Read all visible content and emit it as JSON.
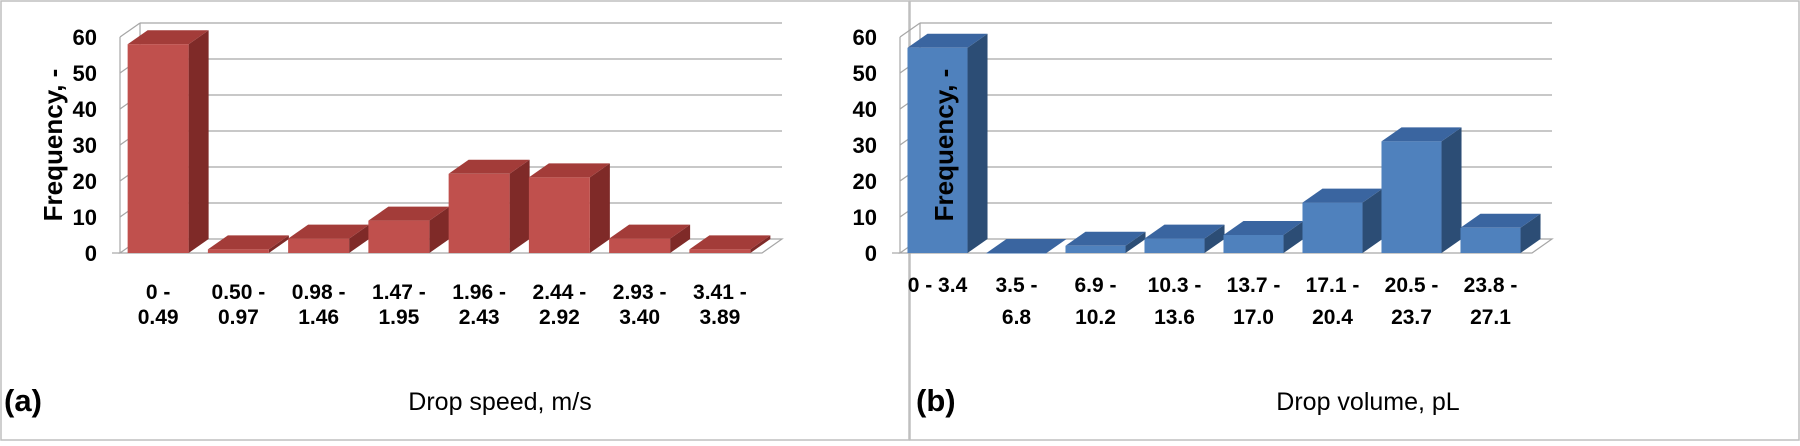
{
  "chart_data": [
    {
      "type": "bar",
      "panel_label": "(a)",
      "categories": [
        [
          "0 -",
          "0.49"
        ],
        [
          "0.50 -",
          "0.97"
        ],
        [
          "0.98 -",
          "1.46"
        ],
        [
          "1.47 -",
          "1.95"
        ],
        [
          "1.96 -",
          "2.43"
        ],
        [
          "2.44 -",
          "2.92"
        ],
        [
          "2.93 -",
          "3.40"
        ],
        [
          "3.41 -",
          "3.89"
        ]
      ],
      "values": [
        58,
        1,
        4,
        9,
        22,
        21,
        4,
        1
      ],
      "xlabel": "Drop speed, m/s",
      "ylabel": "Frequency, -",
      "yticks": [
        "0",
        "10",
        "20",
        "30",
        "40",
        "50",
        "60"
      ],
      "ylim": [
        0,
        60
      ],
      "grid": true,
      "legend": "none",
      "colors": {
        "front": "#c0504d",
        "side": "#7f2a28",
        "top": "#a33c39"
      }
    },
    {
      "type": "bar",
      "panel_label": "(b)",
      "categories": [
        [
          "0 - 3.4",
          ""
        ],
        [
          "3.5 -",
          "6.8"
        ],
        [
          "6.9 -",
          "10.2"
        ],
        [
          "10.3 -",
          "13.6"
        ],
        [
          "13.7 -",
          "17.0"
        ],
        [
          "17.1 -",
          "20.4"
        ],
        [
          "20.5 -",
          "23.7"
        ],
        [
          "23.8 -",
          "27.1"
        ]
      ],
      "values": [
        57,
        0,
        2,
        4,
        5,
        14,
        31,
        7
      ],
      "xlabel": "Drop volume, pL",
      "ylabel": "Frequency, -",
      "yticks": [
        "0",
        "10",
        "20",
        "30",
        "40",
        "50",
        "60"
      ],
      "ylim": [
        0,
        60
      ],
      "grid": true,
      "legend": "none",
      "colors": {
        "front": "#4f81bd",
        "side": "#2c4d75",
        "top": "#3a65a0"
      }
    }
  ]
}
